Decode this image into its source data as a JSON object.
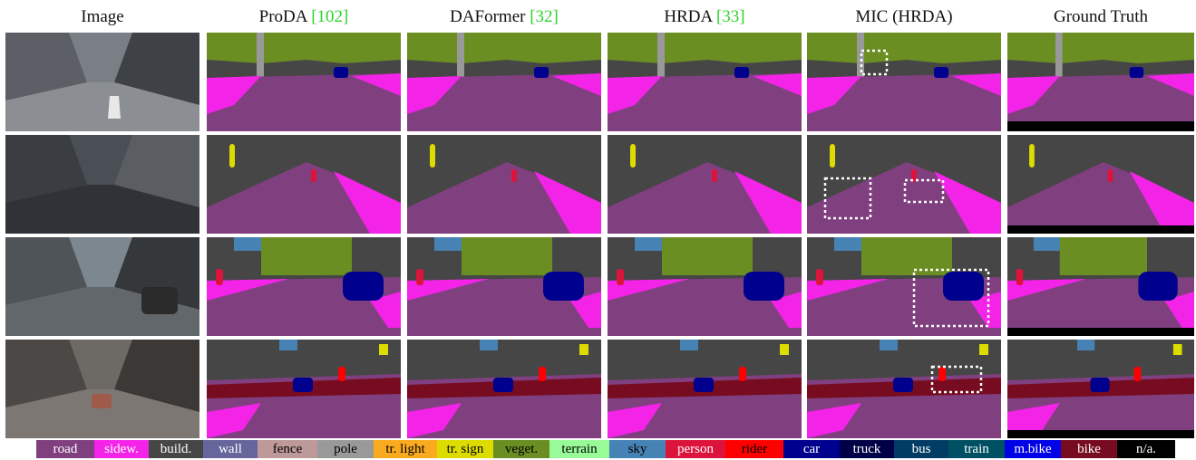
{
  "columns": [
    {
      "label": "Image",
      "cite": ""
    },
    {
      "label": "ProDA ",
      "cite": "[102]"
    },
    {
      "label": "DAFormer ",
      "cite": "[32]"
    },
    {
      "label": "HRDA ",
      "cite": "[33]"
    },
    {
      "label": "MIC (HRDA)",
      "cite": ""
    },
    {
      "label": "Ground Truth",
      "cite": ""
    }
  ],
  "legend": [
    {
      "label": "road",
      "color": "#804080",
      "text_color": "#ffffff"
    },
    {
      "label": "sidew.",
      "color": "#f423e8",
      "text_color": "#ffffff"
    },
    {
      "label": "build.",
      "color": "#464646",
      "text_color": "#ffffff"
    },
    {
      "label": "wall",
      "color": "#66669c",
      "text_color": "#ffffff"
    },
    {
      "label": "fence",
      "color": "#be9999",
      "text_color": "#000000"
    },
    {
      "label": "pole",
      "color": "#999999",
      "text_color": "#000000"
    },
    {
      "label": "tr. light",
      "color": "#faaa1e",
      "text_color": "#000000"
    },
    {
      "label": "tr. sign",
      "color": "#dcdc00",
      "text_color": "#000000"
    },
    {
      "label": "veget.",
      "color": "#6b8e23",
      "text_color": "#000000"
    },
    {
      "label": "terrain",
      "color": "#98fb98",
      "text_color": "#000000"
    },
    {
      "label": "sky",
      "color": "#4682b4",
      "text_color": "#000000"
    },
    {
      "label": "person",
      "color": "#dc143c",
      "text_color": "#ffffff"
    },
    {
      "label": "rider",
      "color": "#ff0000",
      "text_color": "#000000"
    },
    {
      "label": "car",
      "color": "#00008e",
      "text_color": "#ffffff"
    },
    {
      "label": "truck",
      "color": "#000046",
      "text_color": "#ffffff"
    },
    {
      "label": "bus",
      "color": "#003c64",
      "text_color": "#ffffff"
    },
    {
      "label": "train",
      "color": "#005064",
      "text_color": "#ffffff"
    },
    {
      "label": "m.bike",
      "color": "#0000e6",
      "text_color": "#ffffff"
    },
    {
      "label": "bike",
      "color": "#770b20",
      "text_color": "#ffffff"
    },
    {
      "label": "n/a.",
      "color": "#000000",
      "text_color": "#ffffff"
    }
  ]
}
